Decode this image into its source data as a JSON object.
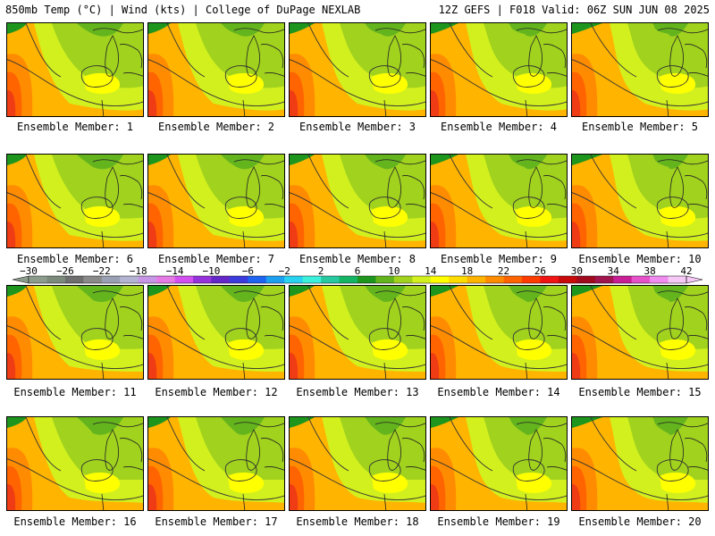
{
  "header": {
    "title_left": "850mb Temp (°C) | Wind (kts) | College of DuPage NEXLAB",
    "title_right": "12Z GEFS | F018 Valid: 06Z SUN JUN 08 2025"
  },
  "panels": [
    {
      "label": "Ensemble Member: 1"
    },
    {
      "label": "Ensemble Member: 2"
    },
    {
      "label": "Ensemble Member: 3"
    },
    {
      "label": "Ensemble Member: 4"
    },
    {
      "label": "Ensemble Member: 5"
    },
    {
      "label": "Ensemble Member: 6"
    },
    {
      "label": "Ensemble Member: 7"
    },
    {
      "label": "Ensemble Member: 8"
    },
    {
      "label": "Ensemble Member: 9"
    },
    {
      "label": "Ensemble Member: 10"
    },
    {
      "label": "Ensemble Member: 11"
    },
    {
      "label": "Ensemble Member: 12"
    },
    {
      "label": "Ensemble Member: 13"
    },
    {
      "label": "Ensemble Member: 14"
    },
    {
      "label": "Ensemble Member: 15"
    },
    {
      "label": "Ensemble Member: 16"
    },
    {
      "label": "Ensemble Member: 17"
    },
    {
      "label": "Ensemble Member: 18"
    },
    {
      "label": "Ensemble Member: 19"
    },
    {
      "label": "Ensemble Member: 20"
    }
  ],
  "colorbar": {
    "tick_labels": [
      "−30",
      "−26",
      "−22",
      "−18",
      "−14",
      "−10",
      "−6",
      "−2",
      "2",
      "6",
      "10",
      "14",
      "18",
      "22",
      "26",
      "30",
      "34",
      "38",
      "42"
    ],
    "colors": [
      "#8c9c8c",
      "#7b8a7b",
      "#6e6e6e",
      "#8a8a8a",
      "#9aa0b4",
      "#b4b4d2",
      "#c896e6",
      "#e67be6",
      "#d250f0",
      "#9632dc",
      "#6428c8",
      "#3c3cdc",
      "#1e64f0",
      "#1ea0f0",
      "#28d2f0",
      "#3cf0dc",
      "#28c8a0",
      "#14b464",
      "#1e961e",
      "#64b41e",
      "#a0d21e",
      "#d2f01e",
      "#ffff00",
      "#ffdc00",
      "#ffb400",
      "#ff8c00",
      "#ff6400",
      "#ff3c00",
      "#f01414",
      "#c80a0a",
      "#a00a1e",
      "#a01450",
      "#c81e96",
      "#e650c8",
      "#f08cf0",
      "#f5c8f5"
    ]
  }
}
